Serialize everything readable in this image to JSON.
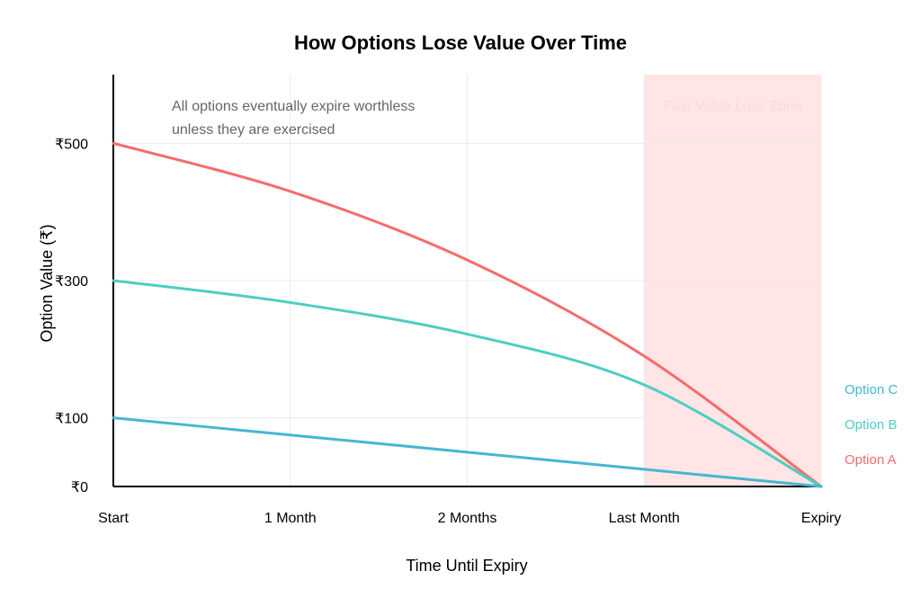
{
  "chart_data": {
    "type": "line",
    "title": "How Options Lose Value Over Time",
    "xlabel": "Time Until Expiry",
    "ylabel": "Option Value (₹)",
    "categories": [
      "Start",
      "1 Month",
      "2 Months",
      "Last Month",
      "Expiry"
    ],
    "y_ticks": [
      {
        "value": 0,
        "label": "₹0"
      },
      {
        "value": 100,
        "label": "₹100"
      },
      {
        "value": 300,
        "label": "₹300"
      },
      {
        "value": 500,
        "label": "₹500"
      }
    ],
    "ylim": [
      0,
      600
    ],
    "grid": true,
    "series": [
      {
        "name": "Option A",
        "color": "#f76b6b",
        "values": [
          500,
          430,
          330,
          190,
          0
        ]
      },
      {
        "name": "Option B",
        "color": "#4ecdc4",
        "values": [
          300,
          268,
          222,
          148,
          0
        ]
      },
      {
        "name": "Option C",
        "color": "#45b7d1",
        "values": [
          100,
          75,
          50,
          25,
          0
        ]
      }
    ],
    "annotation": {
      "lines": [
        "All options eventually expire worthless",
        "unless they are exercised"
      ]
    },
    "zone": {
      "label": "Fast Value Loss Zone",
      "from_category": "Last Month",
      "to_category": "Expiry",
      "color": "#ffe5e5"
    }
  }
}
